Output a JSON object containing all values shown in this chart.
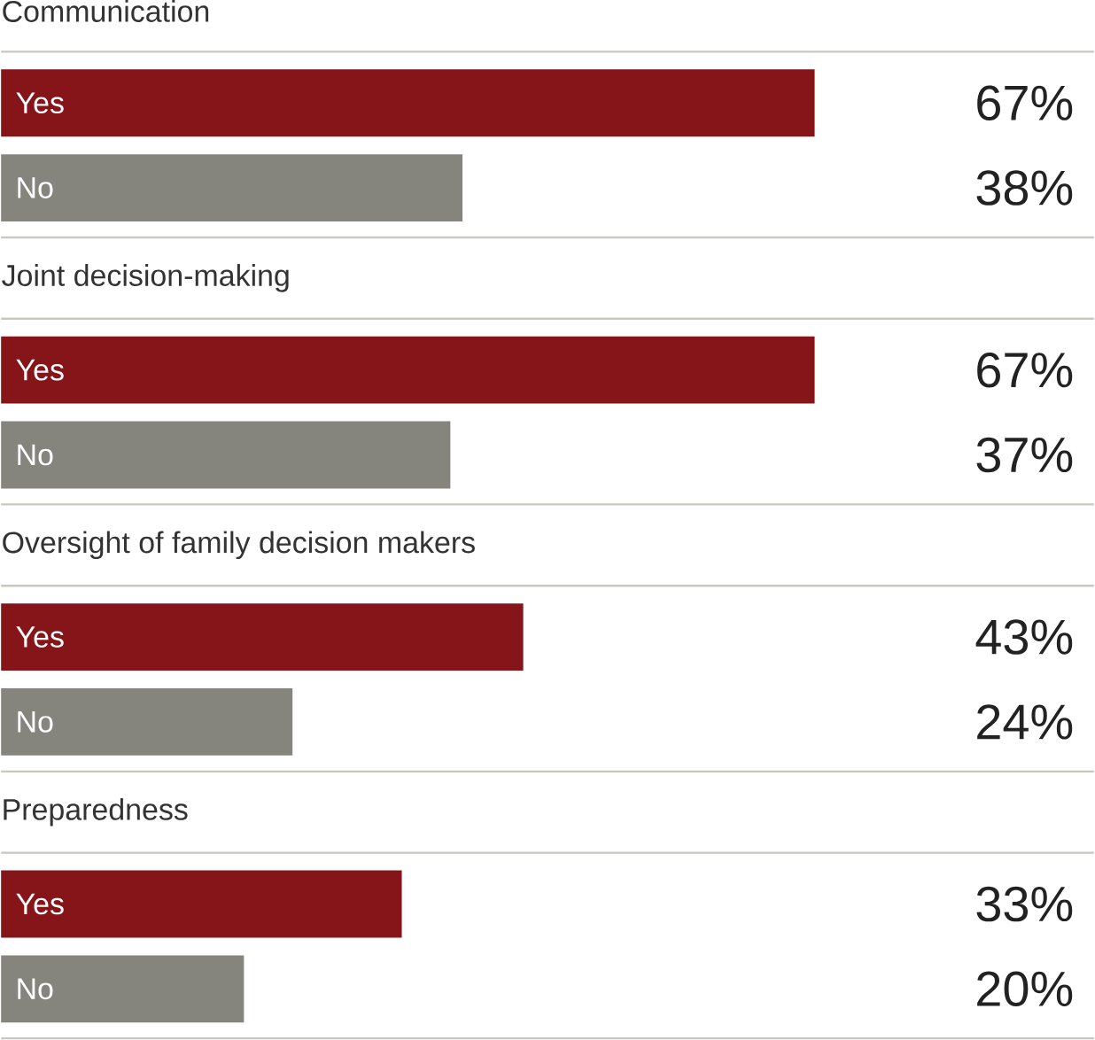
{
  "chart_data": {
    "type": "bar",
    "orientation": "horizontal",
    "tick_labels": false,
    "categories": [
      "Communication",
      "Joint decision-making",
      "Oversight of family decision makers",
      "Preparedness"
    ],
    "xlim": [
      0,
      90
    ],
    "series": [
      {
        "name": "Yes",
        "color": "#86151a",
        "values": [
          67,
          67,
          43,
          33
        ],
        "value_labels": [
          "67%",
          "67%",
          "43%",
          "33%"
        ]
      },
      {
        "name": "No",
        "color": "#85857d",
        "values": [
          38,
          37,
          24,
          20
        ],
        "value_labels": [
          "38%",
          "37%",
          "24%",
          "20%"
        ]
      }
    ]
  }
}
